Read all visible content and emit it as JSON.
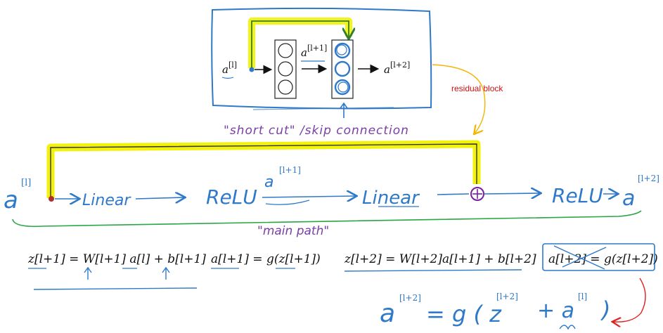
{
  "colors": {
    "ink_blue": "#2f79c9",
    "math_black": "#111111",
    "highlight_yellow": "#f2f20a",
    "main_path_green": "#28a745",
    "label_red": "#cc1111",
    "connector_orange": "#f5b400",
    "node_purple": "#7a1fa2",
    "handwriting_purple": "#7a3ea6",
    "red_arrow": "#e02020"
  },
  "residual_block": {
    "input_label": "a",
    "input_sup": "[l]",
    "middle_label": "a",
    "middle_sup": "[l+1]",
    "output_label": "a",
    "output_sup": "[l+2]",
    "annotation": "residual block"
  },
  "shortcut_caption": "\"short cut\" /skip connection",
  "main_path": {
    "start": "a",
    "start_sup": "[l]",
    "linear1": "Linear",
    "relu1": "ReLU",
    "mid": "a",
    "mid_sup": "[l+1]",
    "linear2": "Linear",
    "relu2": "ReLU",
    "end": "a",
    "end_sup": "[l+2]",
    "caption": "\"main path\""
  },
  "equations": {
    "eq1": "z[l+1] = W[l+1] a[l] + b[l+1]",
    "eq2": "a[l+1] = g(z[l+1])",
    "eq3": "z[l+2] =  W[l+2]a[l+1] + b[l+2]",
    "eq4": "a[l+2] = g(z[l+2])",
    "eq5_lhs": "a",
    "eq5_lhs_sup": "[l+2]",
    "eq5_rhs": "= g ( z",
    "eq5_z_sup": "[l+2]",
    "eq5_plus": "+ a",
    "eq5_a_sup": "[l]",
    "eq5_close": ")"
  }
}
